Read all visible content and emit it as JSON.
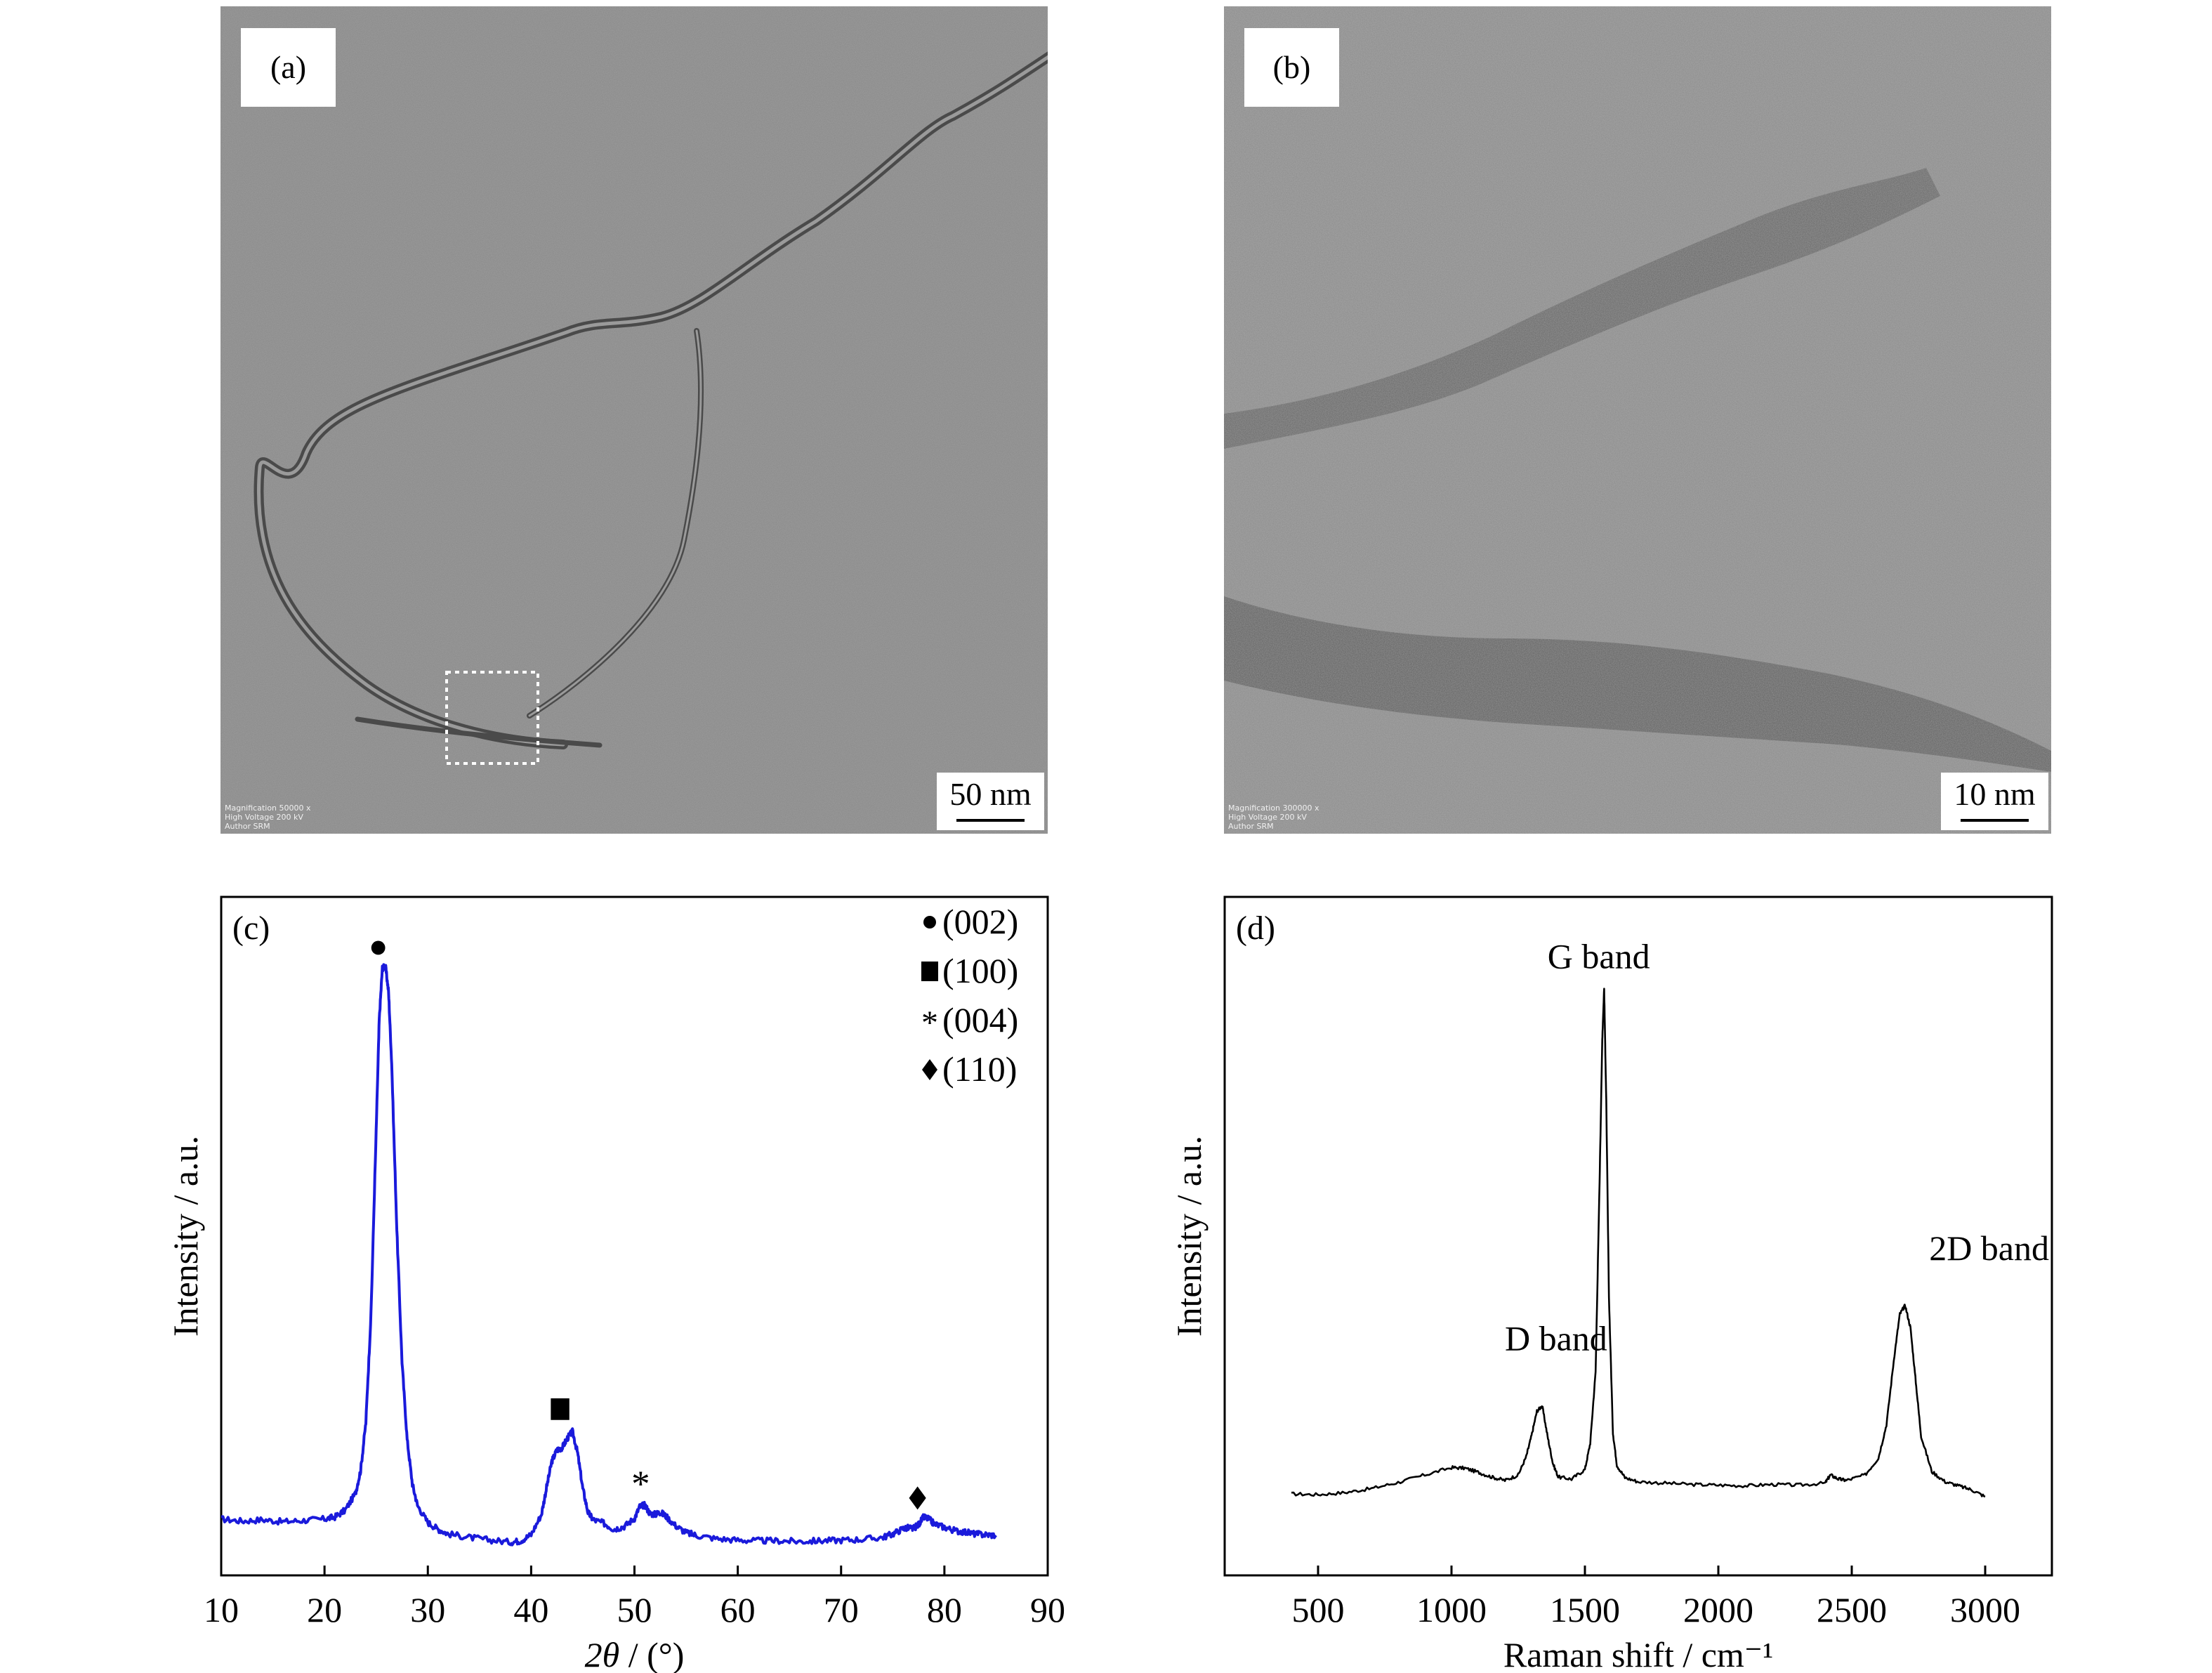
{
  "panels": {
    "a": {
      "label": "(a)",
      "scale_label": "50 nm",
      "meta": [
        "Magnification 50000 x",
        "High Voltage 200 kV",
        "Author SRM"
      ]
    },
    "b": {
      "label": "(b)",
      "scale_label": "10 nm",
      "meta": [
        "Magnification 300000 x",
        "High Voltage 200 kV",
        "Author SRM"
      ]
    }
  },
  "chart_data": [
    {
      "panel": "c",
      "panel_label": "(c)",
      "type": "line",
      "xlabel_italic": "2θ",
      "xlabel_rest": " / (°)",
      "ylabel": "Intensity / a.u.",
      "xlim": [
        10,
        90
      ],
      "xticks": [
        10,
        20,
        30,
        40,
        50,
        60,
        70,
        80,
        90
      ],
      "ylim": [
        0,
        100
      ],
      "line_color": "#1a1adb",
      "series": [
        {
          "x": [
            10,
            12,
            14,
            16,
            18,
            20,
            21,
            22,
            23,
            23.5,
            24,
            24.5,
            25,
            25.3,
            25.6,
            25.9,
            26.2,
            26.5,
            27,
            27.5,
            28,
            28.5,
            29,
            30,
            31,
            32,
            34,
            36,
            38,
            39,
            40,
            41,
            41.5,
            42,
            42.5,
            43,
            43.5,
            44,
            44.5,
            45,
            45.5,
            46,
            47,
            48,
            49,
            50,
            50.5,
            51,
            51.5,
            52,
            52.5,
            53,
            54,
            55,
            56,
            58,
            60,
            62,
            64,
            66,
            68,
            70,
            72,
            74,
            75,
            76,
            76.5,
            77,
            77.5,
            78,
            78.5,
            79,
            80,
            81,
            82,
            83,
            84,
            85
          ],
          "y": [
            8.3,
            8.0,
            8.2,
            7.9,
            8.1,
            8.3,
            8.6,
            9.6,
            12.1,
            15.5,
            22.5,
            38.5,
            65.5,
            82.0,
            89.5,
            89.8,
            86.0,
            75.5,
            51.0,
            31.5,
            20.0,
            13.5,
            10.3,
            7.8,
            6.8,
            6.1,
            5.6,
            5.2,
            4.9,
            5.1,
            6.0,
            9.0,
            13.0,
            16.8,
            18.5,
            18.8,
            20.2,
            21.2,
            18.0,
            12.8,
            9.3,
            8.2,
            7.7,
            6.8,
            7.2,
            8.4,
            10.1,
            10.4,
            9.1,
            9.0,
            9.3,
            8.8,
            7.3,
            6.3,
            5.9,
            5.4,
            5.2,
            5.1,
            5.1,
            5.0,
            5.1,
            5.2,
            5.3,
            5.6,
            6.1,
            6.9,
            7.0,
            6.9,
            7.5,
            8.6,
            8.3,
            7.6,
            7.1,
            6.6,
            6.4,
            6.1,
            6.0,
            5.9
          ]
        }
      ],
      "markers": [
        {
          "x": 25.2,
          "y": 92.5,
          "shape": "circle"
        },
        {
          "x": 42.8,
          "y": 24.5,
          "shape": "square"
        },
        {
          "x": 50.6,
          "y": 13.8,
          "shape": "asterisk"
        },
        {
          "x": 77.4,
          "y": 11.4,
          "shape": "diamond"
        }
      ],
      "legend_position": "top-right",
      "legend": [
        {
          "symbol": "circle",
          "label": "(002)"
        },
        {
          "symbol": "square",
          "label": "(100)"
        },
        {
          "symbol": "asterisk",
          "label": "(004)"
        },
        {
          "symbol": "diamond",
          "label": "(110)"
        }
      ]
    },
    {
      "panel": "d",
      "panel_label": "(d)",
      "type": "line",
      "xlabel": "Raman shift / cm⁻¹",
      "ylabel": "Intensity / a.u.",
      "xlim": [
        150,
        3250
      ],
      "xticks": [
        500,
        1000,
        1500,
        2000,
        2500,
        3000
      ],
      "ylim": [
        0,
        100
      ],
      "line_color": "#000000",
      "series": [
        {
          "x": [
            400,
            500,
            600,
            700,
            800,
            900,
            1000,
            1050,
            1100,
            1150,
            1200,
            1250,
            1280,
            1300,
            1320,
            1340,
            1360,
            1380,
            1400,
            1450,
            1500,
            1520,
            1540,
            1555,
            1565,
            1572,
            1580,
            1590,
            1605,
            1620,
            1650,
            1700,
            1800,
            1900,
            2000,
            2100,
            2200,
            2300,
            2400,
            2420,
            2450,
            2480,
            2550,
            2600,
            2630,
            2660,
            2680,
            2700,
            2720,
            2740,
            2760,
            2800,
            2850,
            2900,
            2950,
            3000
          ],
          "y": [
            12.0,
            11.9,
            12.2,
            12.8,
            13.7,
            14.8,
            15.9,
            15.8,
            15.2,
            14.5,
            14.0,
            14.8,
            17.5,
            20.6,
            24.2,
            25.0,
            20.5,
            16.5,
            14.5,
            14.2,
            15.6,
            19.5,
            30.0,
            58.0,
            79.0,
            86.5,
            70.0,
            41.0,
            21.0,
            16.2,
            14.4,
            13.8,
            13.6,
            13.4,
            13.3,
            13.2,
            13.4,
            13.3,
            13.6,
            14.8,
            14.2,
            14.0,
            14.8,
            17.3,
            22.2,
            32.5,
            38.5,
            39.8,
            36.5,
            28.5,
            20.5,
            15.3,
            13.8,
            13.2,
            12.6,
            11.6
          ]
        }
      ],
      "annotations": [
        {
          "text": "G band",
          "x": 1360,
          "y": 89.5
        },
        {
          "text": "D band",
          "x": 1200,
          "y": 33.2
        },
        {
          "text": "2D band",
          "x": 2790,
          "y": 46.5
        }
      ]
    }
  ]
}
